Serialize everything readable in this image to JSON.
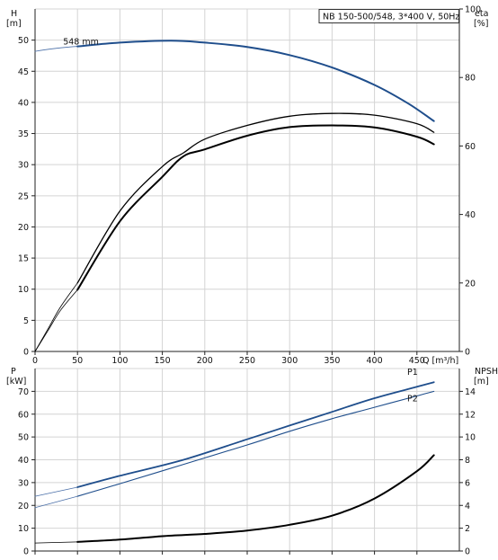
{
  "chart_data": [
    {
      "type": "line",
      "panel": "head-efficiency",
      "title": "NB 150-500/548, 3*400 V, 50Hz",
      "ylabel_left": "H",
      "yunit_left": "[m]",
      "ylabel_right": "eta",
      "yunit_right": "[%]",
      "xlabel": "Q [m³/h]",
      "xlim": [
        0,
        500
      ],
      "ylim_left": [
        0,
        55
      ],
      "ylim_right": [
        0,
        100
      ],
      "xticks": [
        0,
        50,
        100,
        150,
        200,
        250,
        300,
        350,
        400,
        450
      ],
      "yticks_left": [
        0,
        5,
        10,
        15,
        20,
        25,
        30,
        35,
        40,
        45,
        50
      ],
      "yticks_right": [
        0,
        20,
        40,
        60,
        80,
        100
      ],
      "grid": true,
      "annotations": [
        {
          "text": "548 mm",
          "x": 50,
          "y": 49
        }
      ],
      "series": [
        {
          "role": "head-extension",
          "axis": "left",
          "color": "#4a6fa8",
          "width": 0.8,
          "x": [
            0,
            20,
            40,
            50
          ],
          "y": [
            48.2,
            48.6,
            48.9,
            49.0
          ]
        },
        {
          "role": "head",
          "axis": "left",
          "color": "#1f4e8c",
          "width": 2,
          "x": [
            50,
            100,
            160,
            200,
            250,
            300,
            350,
            400,
            440,
            470
          ],
          "y": [
            49.0,
            49.6,
            49.9,
            49.6,
            48.9,
            47.6,
            45.6,
            42.8,
            39.8,
            37.0
          ]
        },
        {
          "role": "eta-extension",
          "axis": "right",
          "color": "#000000",
          "width": 0.8,
          "x": [
            0,
            15,
            30,
            50
          ],
          "y": [
            0,
            6,
            12,
            18
          ]
        },
        {
          "role": "eta-extension",
          "axis": "right",
          "color": "#000000",
          "width": 0.8,
          "x": [
            0,
            15,
            30,
            50
          ],
          "y": [
            0,
            6.5,
            13,
            20
          ]
        },
        {
          "role": "eta-2",
          "axis": "right",
          "color": "#000000",
          "width": 2,
          "x": [
            50,
            100,
            150,
            175,
            200,
            250,
            300,
            350,
            400,
            450,
            470
          ],
          "y": [
            18,
            38,
            51,
            57,
            59,
            63,
            65.5,
            66,
            65.4,
            62.7,
            60.5
          ]
        },
        {
          "role": "eta-1",
          "axis": "right",
          "color": "#000000",
          "width": 1.3,
          "x": [
            50,
            100,
            150,
            175,
            200,
            250,
            300,
            350,
            400,
            450,
            470
          ],
          "y": [
            20,
            41,
            54,
            58,
            62,
            66,
            68.7,
            69.5,
            69,
            66.5,
            64
          ]
        }
      ]
    },
    {
      "type": "line",
      "panel": "power-npsh",
      "ylabel_left": "P",
      "yunit_left": "[kW]",
      "ylabel_right": "NPSH",
      "yunit_right": "[m]",
      "xlim": [
        0,
        500
      ],
      "ylim_left": [
        0,
        80
      ],
      "ylim_right": [
        0,
        16
      ],
      "yticks_left": [
        0,
        10,
        20,
        30,
        40,
        50,
        60,
        70
      ],
      "yticks_right": [
        0,
        2,
        4,
        6,
        8,
        10,
        12,
        14
      ],
      "grid": true,
      "legend": [
        "P1",
        "P2"
      ],
      "series": [
        {
          "role": "P1-extension",
          "axis": "left",
          "color": "#4a6fa8",
          "width": 0.8,
          "x": [
            0,
            50
          ],
          "y": [
            24,
            28
          ]
        },
        {
          "role": "P1",
          "name": "P1",
          "axis": "left",
          "color": "#1f4e8c",
          "width": 1.8,
          "x": [
            50,
            100,
            175,
            250,
            300,
            350,
            400,
            450,
            470
          ],
          "y": [
            28,
            33,
            40,
            49,
            55,
            61,
            67,
            72,
            74
          ]
        },
        {
          "role": "P2-extension",
          "axis": "left",
          "color": "#4a6fa8",
          "width": 0.8,
          "x": [
            0,
            50
          ],
          "y": [
            19,
            24
          ]
        },
        {
          "role": "P2",
          "name": "P2",
          "axis": "left",
          "color": "#1f4e8c",
          "width": 1.1,
          "x": [
            50,
            100,
            175,
            250,
            300,
            350,
            400,
            450,
            470
          ],
          "y": [
            24,
            29.5,
            38,
            46.5,
            52.5,
            58,
            63,
            68,
            70
          ]
        },
        {
          "role": "NPSH-extension",
          "axis": "right",
          "color": "#000000",
          "width": 0.8,
          "x": [
            0,
            50
          ],
          "y": [
            0.7,
            0.8
          ]
        },
        {
          "role": "NPSH",
          "axis": "right",
          "color": "#000000",
          "width": 2,
          "x": [
            50,
            100,
            150,
            200,
            250,
            300,
            350,
            400,
            450,
            470
          ],
          "y": [
            0.8,
            1.0,
            1.3,
            1.5,
            1.8,
            2.3,
            3.1,
            4.6,
            7.0,
            8.4
          ]
        }
      ]
    }
  ]
}
